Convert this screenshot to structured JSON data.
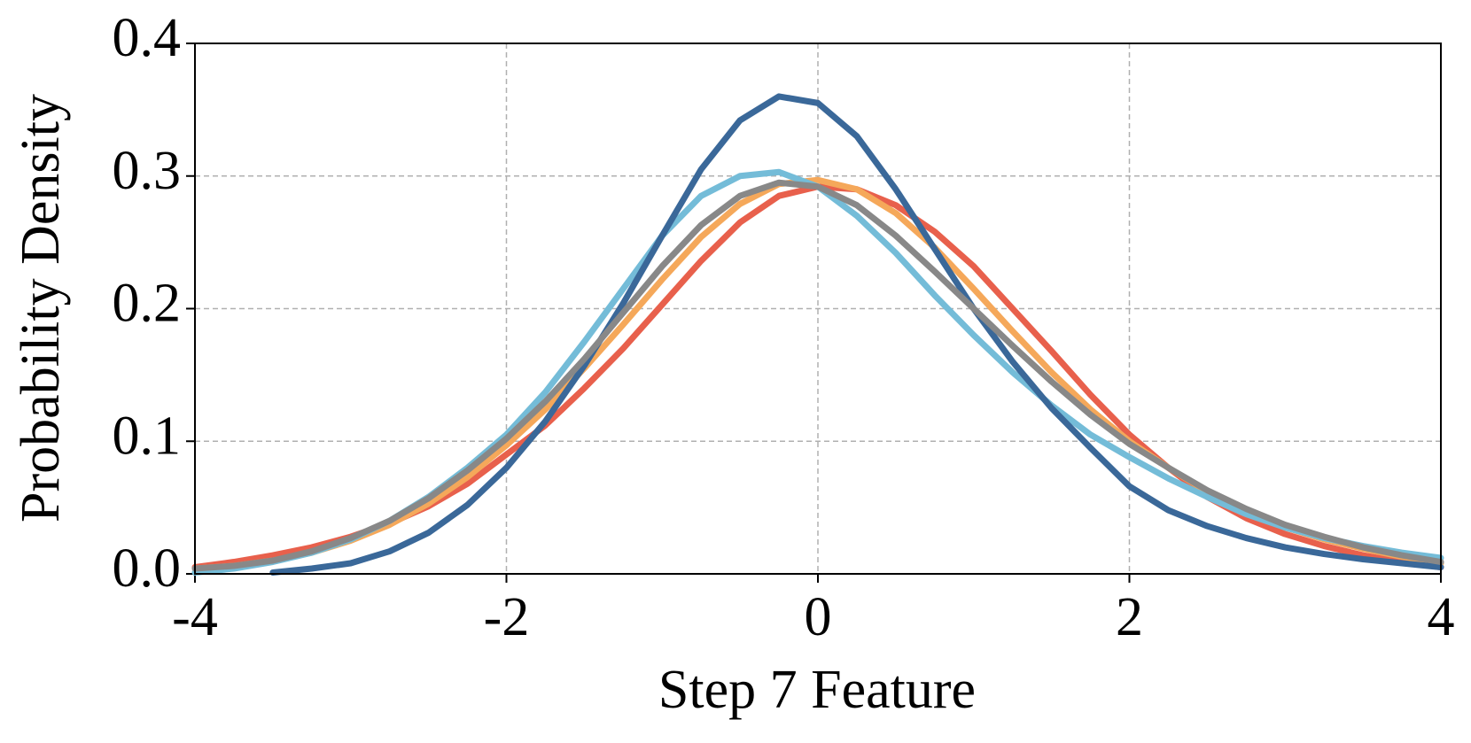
{
  "chart_data": {
    "type": "line",
    "xlabel": "Step 7 Feature",
    "ylabel": "Probability Density",
    "x": [
      -4,
      -3.75,
      -3.5,
      -3.25,
      -3,
      -2.75,
      -2.5,
      -2.25,
      -2,
      -1.75,
      -1.5,
      -1.25,
      -1,
      -0.75,
      -0.5,
      -0.25,
      0,
      0.25,
      0.5,
      0.75,
      1,
      1.25,
      1.5,
      1.75,
      2,
      2.25,
      2.5,
      2.75,
      3,
      3.25,
      3.5,
      3.75,
      4
    ],
    "series": [
      {
        "color": "#e8604c",
        "values": [
          0.005,
          0.009,
          0.014,
          0.02,
          0.028,
          0.038,
          0.051,
          0.068,
          0.09,
          0.112,
          0.14,
          0.17,
          0.203,
          0.236,
          0.265,
          0.285,
          0.292,
          0.29,
          0.278,
          0.258,
          0.232,
          0.2,
          0.168,
          0.135,
          0.105,
          0.08,
          0.058,
          0.042,
          0.03,
          0.021,
          0.014,
          0.009,
          0.005
        ]
      },
      {
        "color": "#f5a85a",
        "values": [
          0.004,
          0.006,
          0.01,
          0.016,
          0.025,
          0.037,
          0.053,
          0.073,
          0.097,
          0.124,
          0.155,
          0.188,
          0.222,
          0.254,
          0.279,
          0.294,
          0.297,
          0.29,
          0.272,
          0.246,
          0.215,
          0.183,
          0.152,
          0.124,
          0.1,
          0.08,
          0.062,
          0.047,
          0.035,
          0.026,
          0.019,
          0.013,
          0.008
        ]
      },
      {
        "color": "#74bcd8",
        "values": [
          0.001,
          0.004,
          0.009,
          0.016,
          0.026,
          0.04,
          0.058,
          0.08,
          0.105,
          0.137,
          0.175,
          0.215,
          0.255,
          0.285,
          0.3,
          0.303,
          0.292,
          0.27,
          0.242,
          0.21,
          0.18,
          0.152,
          0.127,
          0.105,
          0.088,
          0.072,
          0.058,
          0.045,
          0.035,
          0.027,
          0.021,
          0.016,
          0.012
        ]
      },
      {
        "color": "#3a6899",
        "values": [
          null,
          null,
          0.001,
          0.004,
          0.008,
          0.017,
          0.031,
          0.052,
          0.08,
          0.115,
          0.157,
          0.204,
          0.255,
          0.305,
          0.342,
          0.36,
          0.355,
          0.33,
          0.29,
          0.245,
          0.2,
          0.16,
          0.125,
          0.095,
          0.066,
          0.048,
          0.036,
          0.027,
          0.02,
          0.015,
          0.011,
          0.008,
          0.005
        ]
      },
      {
        "color": "#888888",
        "values": [
          0.004,
          0.006,
          0.01,
          0.017,
          0.027,
          0.04,
          0.057,
          0.078,
          0.102,
          0.13,
          0.162,
          0.197,
          0.232,
          0.263,
          0.285,
          0.295,
          0.292,
          0.278,
          0.255,
          0.228,
          0.2,
          0.172,
          0.145,
          0.12,
          0.098,
          0.08,
          0.063,
          0.049,
          0.037,
          0.028,
          0.02,
          0.014,
          0.009
        ]
      }
    ],
    "xlim": [
      -4,
      4
    ],
    "xticks": [
      -4,
      -2,
      0,
      2,
      4
    ],
    "ylim": [
      0,
      0.4
    ],
    "yticks": [
      {
        "value": 0,
        "label": "0.0"
      },
      0.1,
      0.2,
      0.3,
      0.4
    ],
    "grid": true
  }
}
